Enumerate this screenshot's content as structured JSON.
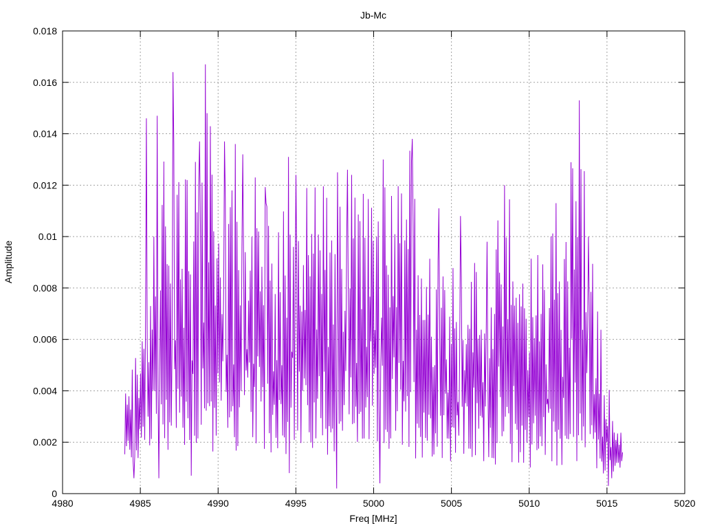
{
  "chart_data": {
    "type": "line",
    "title": "Jb-Mc",
    "xlabel": "Freq [MHz]",
    "ylabel": "Amplitude",
    "xlim": [
      4980,
      5020
    ],
    "ylim": [
      0,
      0.018
    ],
    "x_ticks": [
      "4980",
      "4985",
      "4990",
      "4995",
      "5000",
      "5005",
      "5010",
      "5015",
      "5020"
    ],
    "y_ticks": [
      "0",
      "0.002",
      "0.004",
      "0.006",
      "0.008",
      "0.01",
      "0.012",
      "0.014",
      "0.016",
      "0.018"
    ],
    "grid": true,
    "legend": "none",
    "series": [
      {
        "color": "#9400d3",
        "x_start": 4984.0,
        "x_end": 5016.0,
        "samples": 600,
        "envelope": [
          [
            4984.0,
            0.0045
          ],
          [
            4985.0,
            0.006
          ],
          [
            4985.5,
            0.011
          ],
          [
            4986.0,
            0.014
          ],
          [
            4987.0,
            0.012
          ],
          [
            4987.2,
            0.0163
          ],
          [
            4988.0,
            0.012
          ],
          [
            4989.2,
            0.0167
          ],
          [
            4990.0,
            0.012
          ],
          [
            4990.5,
            0.0135
          ],
          [
            4991.5,
            0.013
          ],
          [
            4993.0,
            0.012
          ],
          [
            4994.5,
            0.013
          ],
          [
            4995.5,
            0.0125
          ],
          [
            4998.0,
            0.0124
          ],
          [
            4999.0,
            0.0122
          ],
          [
            5000.7,
            0.0126
          ],
          [
            5002.5,
            0.0138
          ],
          [
            5004.0,
            0.0105
          ],
          [
            5005.0,
            0.0102
          ],
          [
            5007.5,
            0.0096
          ],
          [
            5008.6,
            0.012
          ],
          [
            5010.0,
            0.0096
          ],
          [
            5011.7,
            0.0113
          ],
          [
            5013.2,
            0.0153
          ],
          [
            5014.0,
            0.01
          ],
          [
            5015.0,
            0.0045
          ],
          [
            5016.0,
            0.0025
          ]
        ],
        "floor": [
          [
            4984.0,
            0.001
          ],
          [
            4986.0,
            0.0015
          ],
          [
            4990.0,
            0.0015
          ],
          [
            5000.0,
            0.0015
          ],
          [
            5010.0,
            0.001
          ],
          [
            5015.0,
            0.0007
          ],
          [
            5016.0,
            0.0008
          ]
        ],
        "peaks": [
          [
            4985.4,
            0.0146
          ],
          [
            4986.1,
            0.0147
          ],
          [
            4987.1,
            0.0164
          ],
          [
            4988.0,
            0.0122
          ],
          [
            4988.8,
            0.0137
          ],
          [
            4989.2,
            0.0167
          ],
          [
            4989.3,
            0.0148
          ],
          [
            4990.4,
            0.0137
          ],
          [
            4991.1,
            0.0136
          ],
          [
            4991.6,
            0.0132
          ],
          [
            4992.4,
            0.0123
          ],
          [
            4993.1,
            0.0113
          ],
          [
            4994.5,
            0.0131
          ],
          [
            4995.0,
            0.0124
          ],
          [
            4996.0,
            0.0101
          ],
          [
            4997.7,
            0.0125
          ],
          [
            4998.3,
            0.0126
          ],
          [
            4998.6,
            0.0124
          ],
          [
            4999.1,
            0.0106
          ],
          [
            5000.6,
            0.013
          ],
          [
            5002.5,
            0.0138
          ],
          [
            5004.2,
            0.0111
          ],
          [
            5005.6,
            0.0108
          ],
          [
            5007.3,
            0.0098
          ],
          [
            5008.4,
            0.012
          ],
          [
            5011.7,
            0.0113
          ],
          [
            5013.2,
            0.0153
          ],
          [
            5013.8,
            0.01
          ]
        ],
        "dips": [
          [
            4984.6,
            0.0006
          ],
          [
            4986.2,
            0.0006
          ],
          [
            4988.3,
            0.0007
          ],
          [
            4994.6,
            0.0008
          ],
          [
            4997.6,
            0.0002
          ],
          [
            5000.4,
            0.0004
          ],
          [
            5015.1,
            0.0003
          ],
          [
            5015.3,
            0.0006
          ]
        ]
      }
    ]
  }
}
